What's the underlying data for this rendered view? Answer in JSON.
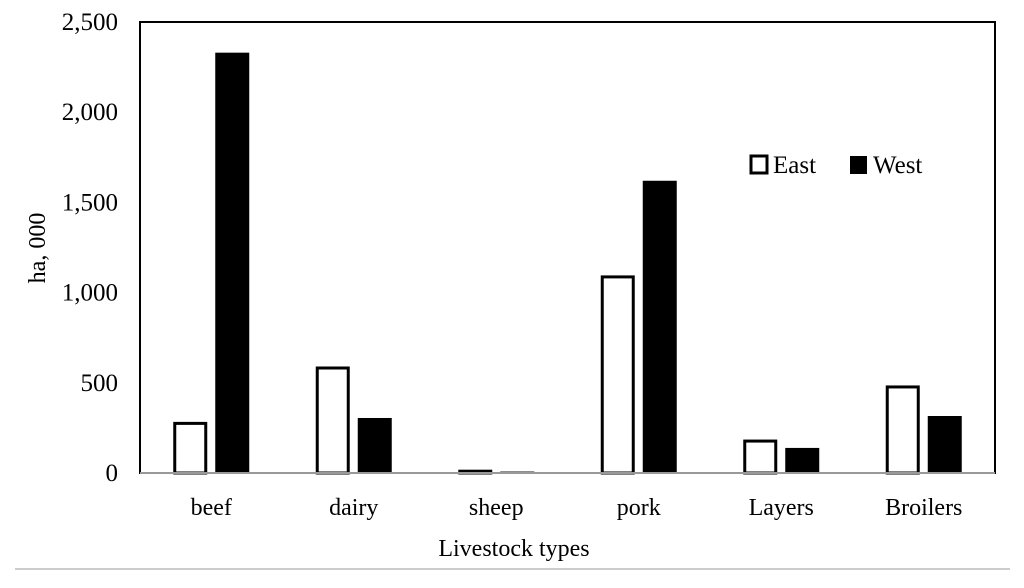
{
  "chart_data": {
    "type": "bar",
    "title": "",
    "xlabel": "Livestock types",
    "ylabel": "ha, 000",
    "ylim": [
      0,
      2500
    ],
    "yticks": [
      "0",
      "500",
      "1,000",
      "1,500",
      "2,000",
      "2,500"
    ],
    "ytick_values": [
      0,
      500,
      1000,
      1500,
      2000,
      2500
    ],
    "grid": false,
    "legend_position": "right",
    "categories": [
      "beef",
      "dairy",
      "sheep",
      "pork",
      "Layers",
      "Broilers"
    ],
    "series": [
      {
        "name": "East",
        "color": "#ffffff",
        "values": [
          275,
          582,
          10,
          1087,
          177,
          477
        ]
      },
      {
        "name": "West",
        "color": "#000000",
        "values": [
          2330,
          305,
          8,
          1620,
          139,
          316
        ]
      }
    ]
  }
}
